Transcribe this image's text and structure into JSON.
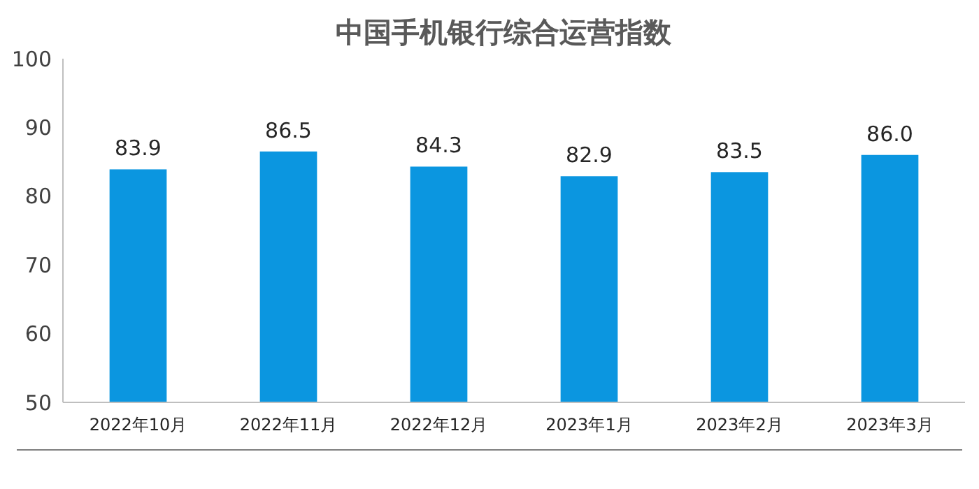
{
  "chart_data": {
    "type": "bar",
    "title": "中国手机银行综合运营指数",
    "categories": [
      "2022年10月",
      "2022年11月",
      "2022年12月",
      "2023年1月",
      "2023年2月",
      "2023年3月"
    ],
    "values": [
      83.9,
      86.5,
      84.3,
      82.9,
      83.5,
      86.0
    ],
    "value_labels": [
      "83.9",
      "86.5",
      "84.3",
      "82.9",
      "83.5",
      "86.0"
    ],
    "color": "#0b96e0",
    "ylim": [
      50,
      100
    ],
    "yticks": [
      50,
      60,
      70,
      80,
      90,
      100
    ],
    "grid": false
  }
}
